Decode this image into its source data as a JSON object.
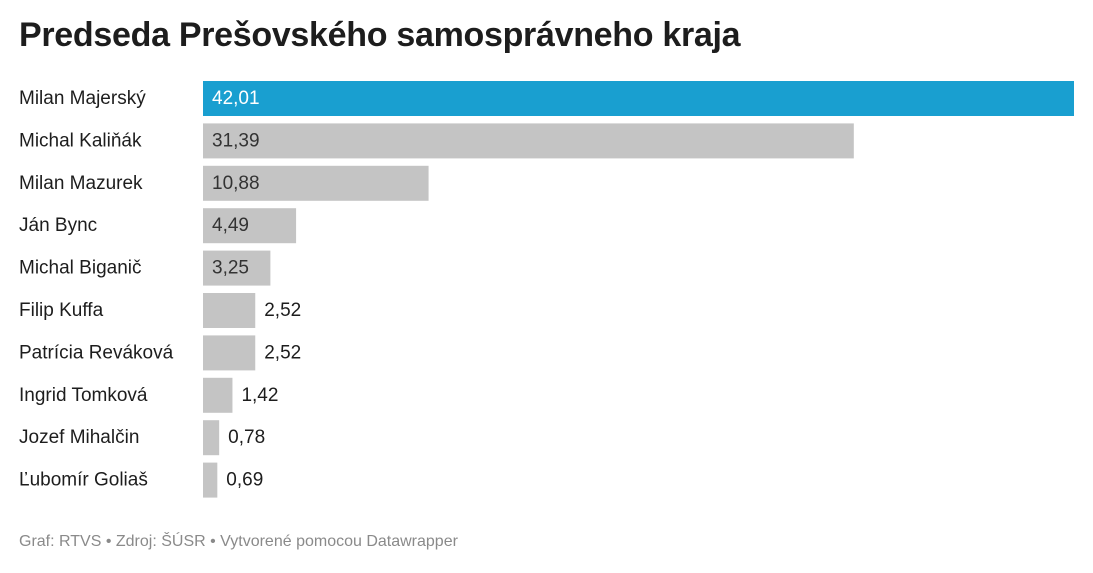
{
  "title": "Predseda Prešovského samosprávneho kraja",
  "footer": {
    "text": "Graf: RTVS • Zdroj: ŠÚSR • Vytvorené pomocou Datawrapper"
  },
  "colors": {
    "highlight": "#199fd0",
    "bar": "#c4c4c4",
    "label_inside_highlight": "#ffffff",
    "label_inside": "#333333",
    "label_outside": "#1d1d1d"
  },
  "chart_data": {
    "type": "bar",
    "orientation": "horizontal",
    "title": "Predseda Prešovského samosprávneho kraja",
    "xlabel": "",
    "ylabel": "",
    "xlim": [
      0,
      42.01
    ],
    "grid": false,
    "legend": "none",
    "categories": [
      "Milan Majerský",
      "Michal Kaliňák",
      "Milan Mazurek",
      "Ján Bync",
      "Michal Biganič",
      "Filip Kuffa",
      "Patrícia Reváková",
      "Ingrid Tomková",
      "Jozef Mihalčin",
      "Ľubomír Goliaš"
    ],
    "values": [
      42.01,
      31.39,
      10.88,
      4.49,
      3.25,
      2.52,
      2.52,
      1.42,
      0.78,
      0.69
    ],
    "value_labels": [
      "42,01",
      "31,39",
      "10,88",
      "4,49",
      "3,25",
      "2,52",
      "2,52",
      "1,42",
      "0,78",
      "0,69"
    ],
    "highlighted": [
      "Milan Majerský"
    ]
  }
}
